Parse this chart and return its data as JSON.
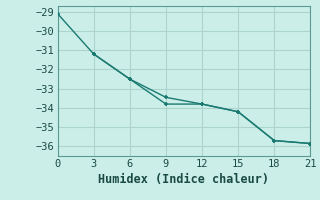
{
  "xlabel": "Humidex (Indice chaleur)",
  "background_color": "#cceee8",
  "grid_color": "#aad4cc",
  "line_color": "#1a7a72",
  "xlim": [
    0,
    21
  ],
  "ylim": [
    -36.5,
    -28.7
  ],
  "xticks": [
    0,
    3,
    6,
    9,
    12,
    15,
    18,
    21
  ],
  "yticks": [
    -29,
    -30,
    -31,
    -32,
    -33,
    -34,
    -35,
    -36
  ],
  "line1_x": [
    0,
    3,
    6,
    9,
    12,
    15,
    18,
    21
  ],
  "line1_y": [
    -29.1,
    -31.2,
    -32.5,
    -33.45,
    -33.8,
    -34.2,
    -35.7,
    -35.85
  ],
  "line2_x": [
    3,
    6,
    9,
    12,
    15,
    18,
    21
  ],
  "line2_y": [
    -31.2,
    -32.5,
    -33.8,
    -33.8,
    -34.2,
    -35.7,
    -35.85
  ],
  "tick_fontsize": 7.5,
  "xlabel_fontsize": 8.5
}
